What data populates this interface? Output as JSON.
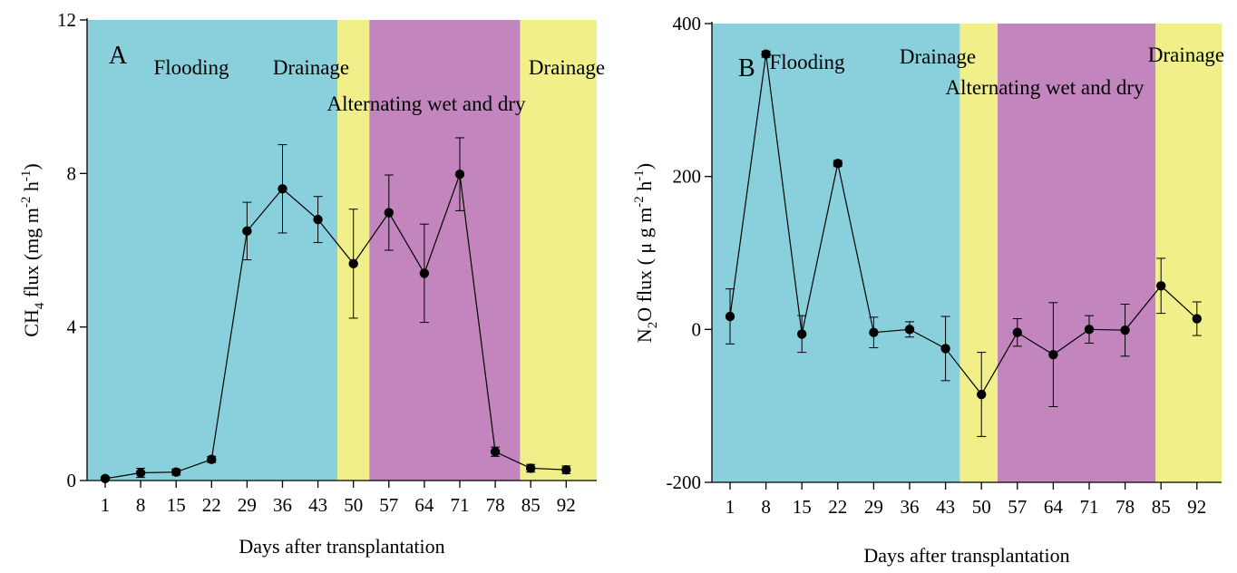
{
  "chart_data": [
    {
      "type": "line",
      "panel_label": "A",
      "xlabel": "Days after transplantation",
      "ylabel": {
        "base": "CH",
        "sub": "4",
        "mid": " flux (mg m",
        "sup1": "-2",
        "mid2": " h",
        "sup2": "-1",
        "end": ")"
      },
      "x": [
        "1",
        "8",
        "15",
        "22",
        "29",
        "36",
        "43",
        "50",
        "57",
        "64",
        "71",
        "78",
        "85",
        "92"
      ],
      "ylim": [
        0,
        12
      ],
      "yticks": [
        "0",
        "4",
        "8",
        "12"
      ],
      "series": [
        {
          "values": [
            0.05,
            0.2,
            0.22,
            0.55,
            6.5,
            7.6,
            6.8,
            5.65,
            6.98,
            5.4,
            7.98,
            0.75,
            0.32,
            0.28
          ],
          "errors": [
            0.05,
            0.12,
            0.08,
            0.08,
            0.75,
            1.15,
            0.6,
            1.42,
            0.98,
            1.28,
            0.95,
            0.12,
            0.1,
            0.1
          ]
        }
      ],
      "phases": [
        {
          "label": "Flooding",
          "start": 0.0,
          "end": 6.55,
          "color": "#8ad0dc"
        },
        {
          "label": "Drainage",
          "start": 6.55,
          "end": 7.45,
          "color": "#f0ef8a"
        },
        {
          "label": "Alternating wet and dry",
          "start": 7.45,
          "end": 11.7,
          "color": "#c285bd"
        },
        {
          "label": "Drainage",
          "start": 11.7,
          "end": 13.6,
          "color": "#f0ef8a"
        }
      ],
      "grid": false
    },
    {
      "type": "line",
      "panel_label": "B",
      "xlabel": "Days after transplantation",
      "ylabel": {
        "base": "N",
        "sub": "2",
        "mid": "O flux ( μ g m",
        "sup1": "-2",
        "mid2": " h",
        "sup2": "-1",
        "end": ")"
      },
      "x": [
        "1",
        "8",
        "15",
        "22",
        "29",
        "36",
        "43",
        "50",
        "57",
        "64",
        "71",
        "78",
        "85",
        "92"
      ],
      "ylim": [
        -200,
        400
      ],
      "yticks": [
        "-200",
        "0",
        "200",
        "400"
      ],
      "series": [
        {
          "values": [
            17,
            360,
            -6,
            217,
            -4,
            0,
            -25,
            -85,
            -4,
            -33,
            0,
            -1,
            57,
            14
          ],
          "errors": [
            36,
            4,
            24,
            4,
            20,
            10,
            42,
            55,
            18,
            68,
            18,
            34,
            36,
            22
          ]
        }
      ],
      "phases": [
        {
          "label": "Flooding",
          "start": -0.2,
          "end": 6.4,
          "color": "#8ad0dc"
        },
        {
          "label": "Drainage",
          "start": 6.4,
          "end": 7.45,
          "color": "#f0ef8a"
        },
        {
          "label": "Alternating wet and dry",
          "start": 7.45,
          "end": 11.85,
          "color": "#c285bd"
        },
        {
          "label": "Drainage",
          "start": 11.85,
          "end": 13.3,
          "color": "#f0ef8a"
        }
      ],
      "grid": false
    }
  ]
}
